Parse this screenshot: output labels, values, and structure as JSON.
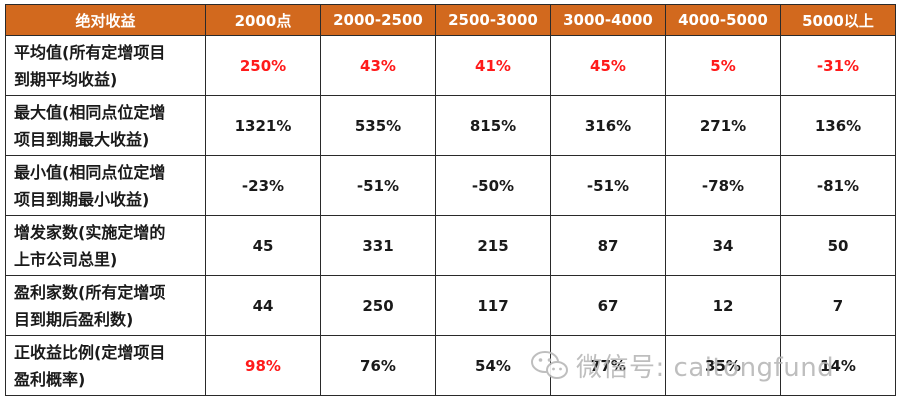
{
  "header": [
    "绝对收益",
    "2000点",
    "2000-2500",
    "2500-3000",
    "3000-4000",
    "4000-5000",
    "5000以上"
  ],
  "rows": [
    {
      "label_lines": [
        "平均值(所有定增项目",
        "到期平均收益)"
      ],
      "values": [
        "250%",
        "43%",
        "41%",
        "45%",
        "5%",
        "-31%"
      ],
      "red": [
        true,
        true,
        true,
        true,
        true,
        true
      ]
    },
    {
      "label_lines": [
        "最大值(相同点位定增",
        "项目到期最大收益)"
      ],
      "values": [
        "1321%",
        "535%",
        "815%",
        "316%",
        "271%",
        "136%"
      ],
      "red": [
        false,
        false,
        false,
        false,
        false,
        false
      ]
    },
    {
      "label_lines": [
        "最小值(相同点位定增",
        "项目到期最小收益)"
      ],
      "values": [
        "-23%",
        "-51%",
        "-50%",
        "-51%",
        "-78%",
        "-81%"
      ],
      "red": [
        false,
        false,
        false,
        false,
        false,
        false
      ]
    },
    {
      "label_lines": [
        "增发家数(实施定增的",
        "上市公司总里)"
      ],
      "values": [
        "45",
        "331",
        "215",
        "87",
        "34",
        "50"
      ],
      "red": [
        false,
        false,
        false,
        false,
        false,
        false
      ]
    },
    {
      "label_lines": [
        "盈利家数(所有定增项",
        "目到期后盈利数)"
      ],
      "values": [
        "44",
        "250",
        "117",
        "67",
        "12",
        "7"
      ],
      "red": [
        false,
        false,
        false,
        false,
        false,
        false
      ]
    },
    {
      "label_lines": [
        "正收益比例(定增项目",
        "盈利概率)"
      ],
      "values": [
        "98%",
        "76%",
        "54%",
        "77%",
        "35%",
        "14%"
      ],
      "red": [
        true,
        false,
        false,
        false,
        false,
        false
      ]
    }
  ],
  "watermark": {
    "text": "微信号: caitongfund",
    "icon": "wechat-icon"
  },
  "colors": {
    "header_bg": "#d2691e",
    "header_text": "#ffffff",
    "highlight": "#ff1a1a",
    "border": "#2a2a2a"
  }
}
